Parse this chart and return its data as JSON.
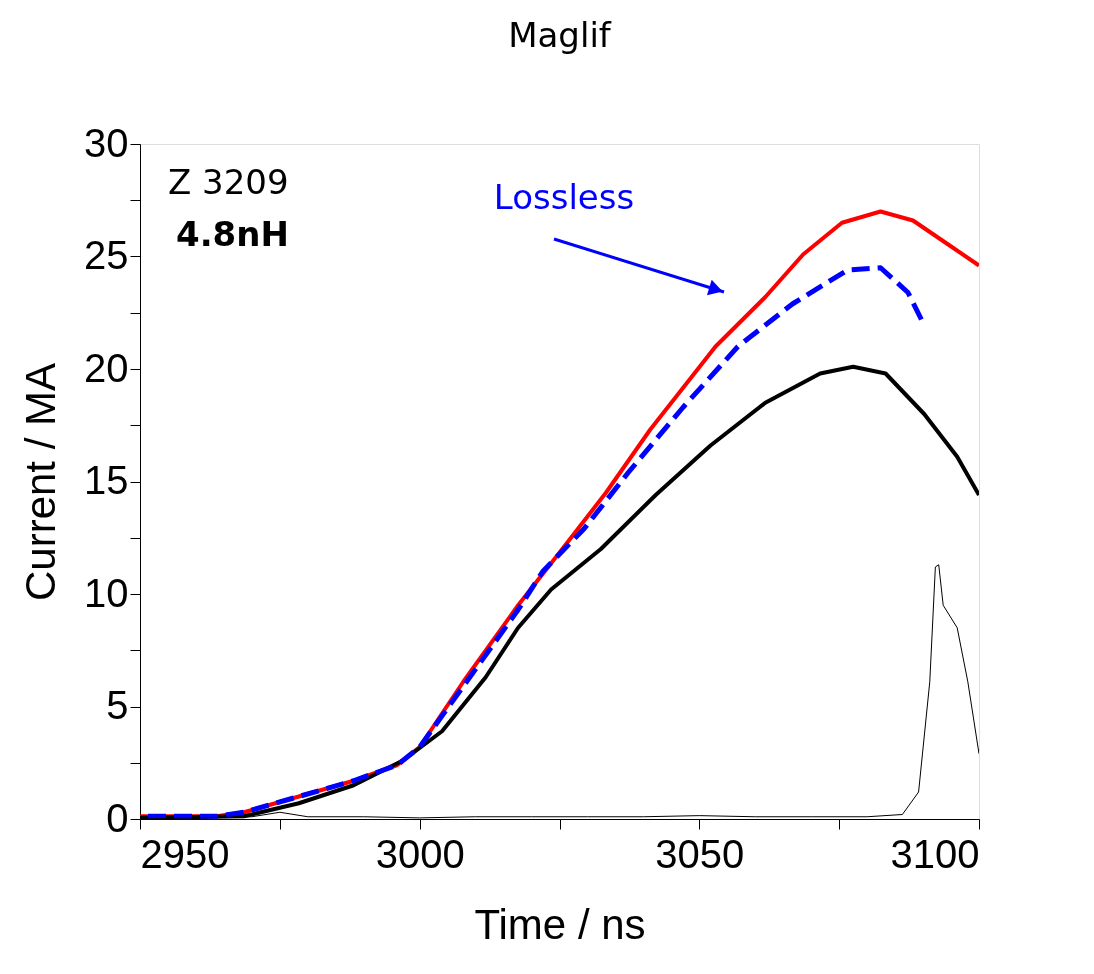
{
  "chart_data": {
    "type": "line",
    "title": "Maglif",
    "xlabel": "Time / ns",
    "ylabel": "Current / MA",
    "xlim": [
      2950,
      3100
    ],
    "ylim": [
      0,
      30
    ],
    "xticks": [
      2950,
      {
        "value": 2975,
        "label": null
      },
      3000,
      {
        "value": 3025,
        "label": null
      },
      3050,
      {
        "value": 3075,
        "label": null
      },
      3100
    ],
    "yticks": [
      0,
      {
        "value": 2.5,
        "label": null
      },
      5,
      {
        "value": 7.5,
        "label": null
      },
      10,
      {
        "value": 12.5,
        "label": null
      },
      15,
      {
        "value": 17.5,
        "label": null
      },
      20,
      {
        "value": 22.5,
        "label": null
      },
      25,
      {
        "value": 27.5,
        "label": null
      },
      30
    ],
    "grid": false,
    "annotations": [
      "Z 3209",
      "4.8nH",
      "Lossless"
    ],
    "series": [
      {
        "color": "#ff0000",
        "line_style": "solid",
        "x": [
          2950,
          2963.7,
          2968.6,
          2978.4,
          2988.2,
          2996,
          3000,
          3007.8,
          3017.6,
          3025.5,
          3033.3,
          3041.2,
          3052.9,
          3061.8,
          3068.6,
          3075.5,
          3082.4,
          3088.2,
          3094.1,
          3100
        ],
        "values": [
          0.12,
          0.12,
          0.3,
          1.0,
          1.7,
          2.4,
          3.2,
          6.1,
          9.5,
          12.0,
          14.5,
          17.3,
          21.0,
          23.2,
          25.1,
          26.5,
          27.0,
          26.6,
          25.6,
          24.6
        ]
      },
      {
        "color": "#000000",
        "line_style": "solid",
        "x": [
          2950,
          2968.6,
          2978.4,
          2988.2,
          2997,
          3004,
          3011.8,
          3017.6,
          3023.5,
          3032.4,
          3042.2,
          3052,
          3061.8,
          3071.6,
          3077.5,
          3083.3,
          3090.2,
          3096.1,
          3100
        ],
        "values": [
          0.05,
          0.12,
          0.7,
          1.5,
          2.6,
          3.9,
          6.3,
          8.5,
          10.2,
          12.0,
          14.4,
          16.6,
          18.5,
          19.8,
          20.1,
          19.8,
          18.0,
          16.1,
          14.4
        ]
      },
      {
        "color": "#0000ff",
        "line_style": "dashed",
        "x": [
          2950,
          2963.7,
          2968.6,
          2978.4,
          2988.2,
          2996,
          3000,
          3007.8,
          3017.6,
          3022,
          3029.4,
          3037.3,
          3047.1,
          3056.9,
          3066.7,
          3076.5,
          3082.4,
          3087.3,
          3089.7
        ],
        "values": [
          0.12,
          0.12,
          0.3,
          1.0,
          1.7,
          2.4,
          3.2,
          5.9,
          9.3,
          11.0,
          12.9,
          15.4,
          18.3,
          21.0,
          22.9,
          24.4,
          24.5,
          23.4,
          22.2
        ]
      },
      {
        "color": "#000000",
        "line_style": "solid",
        "x": [
          2950,
          2960,
          2970,
          2975,
          2980,
          2990,
          3000,
          3010,
          3020,
          3030,
          3040,
          3050,
          3060,
          3070,
          3080,
          3086.3,
          3089.2,
          3091.2,
          3092.2,
          3092.8,
          3093.6,
          3096.1,
          3098,
          3100
        ],
        "values": [
          0.0,
          0.05,
          0.1,
          0.3,
          0.1,
          0.1,
          0.05,
          0.1,
          0.1,
          0.1,
          0.1,
          0.15,
          0.1,
          0.1,
          0.1,
          0.2,
          1.2,
          6.1,
          11.2,
          11.3,
          9.5,
          8.5,
          6.1,
          2.9
        ]
      }
    ]
  }
}
